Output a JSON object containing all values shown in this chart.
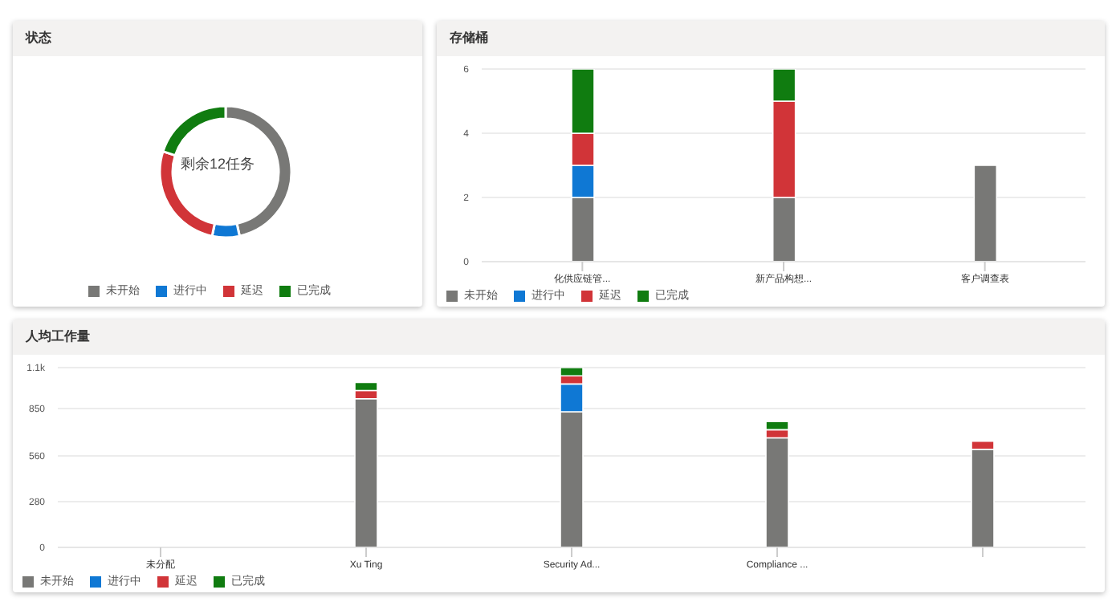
{
  "chart_data": [
    {
      "type": "donut",
      "title": "状态",
      "categories": [
        "未开始",
        "进行中",
        "延迟",
        "已完成"
      ],
      "values": [
        46.6,
        6.7,
        26.7,
        20
      ],
      "colors": [
        "#787876",
        "#0f78d4",
        "#d13438",
        "#107c10"
      ],
      "annotations": [
        "剩余12任务"
      ],
      "legend": "bottom"
    },
    {
      "type": "bar",
      "title": "存储桶",
      "categories": [
        "化供应链管...",
        "新产品构想...",
        "客户调查表"
      ],
      "stacked": true,
      "ylim": [
        0,
        6
      ],
      "yticks": [
        0,
        2,
        4,
        6
      ],
      "grid": "y",
      "legend": "bottom left",
      "series": [
        {
          "name": "未开始",
          "color": "#787876",
          "values": [
            2,
            2,
            3
          ]
        },
        {
          "name": "进行中",
          "color": "#0f78d4",
          "values": [
            1,
            0,
            0
          ]
        },
        {
          "name": "延迟",
          "color": "#d13438",
          "values": [
            1,
            3,
            0
          ]
        },
        {
          "name": "已完成",
          "color": "#107c10",
          "values": [
            2,
            1,
            0
          ]
        }
      ]
    },
    {
      "type": "bar",
      "title": "人均工作量",
      "categories": [
        "未分配",
        "Xu Ting",
        "Security Ad...",
        "Compliance ...",
        null
      ],
      "stacked": true,
      "ylim": [
        0,
        1100
      ],
      "yticks": [
        0,
        280,
        560,
        850,
        {
          "value": 1100,
          "label": "1.1k"
        }
      ],
      "grid": "y",
      "legend": "bottom left",
      "series": [
        {
          "name": "未开始",
          "color": "#787876",
          "values": [
            0,
            910,
            830,
            670,
            600
          ]
        },
        {
          "name": "进行中",
          "color": "#0f78d4",
          "values": [
            0,
            0,
            170,
            0,
            0
          ]
        },
        {
          "name": "延迟",
          "color": "#d13438",
          "values": [
            0,
            50,
            50,
            50,
            50
          ]
        },
        {
          "name": "已完成",
          "color": "#107c10",
          "values": [
            0,
            50,
            50,
            50,
            0
          ]
        }
      ]
    }
  ]
}
